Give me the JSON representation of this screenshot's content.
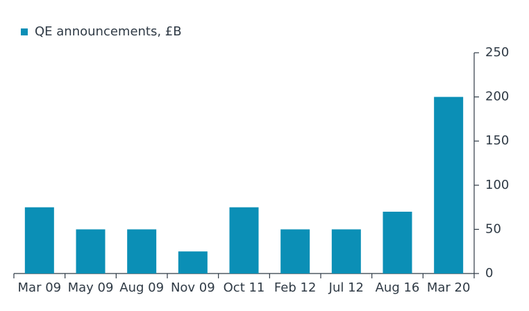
{
  "chart_data": {
    "type": "bar",
    "categories": [
      "Mar 09",
      "May 09",
      "Aug 09",
      "Nov 09",
      "Oct 11",
      "Feb 12",
      "Jul 12",
      "Aug 16",
      "Mar 20"
    ],
    "series": [
      {
        "name": "QE announcements, £B",
        "color": "#0b8fb6",
        "values": [
          75,
          50,
          50,
          25,
          75,
          50,
          50,
          70,
          200
        ]
      }
    ],
    "ylim": [
      0,
      250
    ],
    "yticks": [
      0,
      50,
      100,
      150,
      200,
      250
    ],
    "y_axis_side": "right",
    "grid": false,
    "legend": "top-left"
  }
}
